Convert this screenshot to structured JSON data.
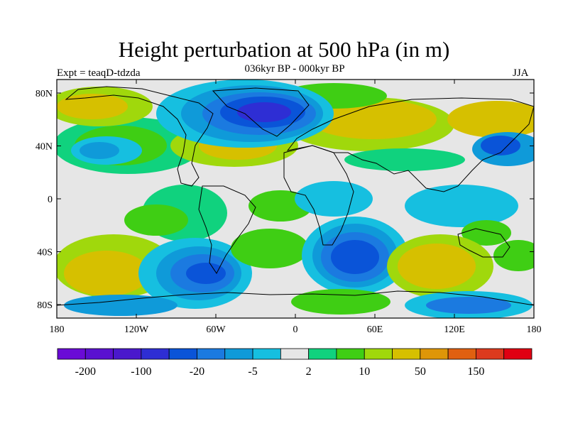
{
  "header": {
    "title": "Height perturbation at 500 hPa (in m)",
    "subtitle": "036kyr BP - 000kyr BP",
    "left_label": "Expt = teaqD-tdzda",
    "right_label": "JJA"
  },
  "map": {
    "projection": "cylindrical-equidistant",
    "lat_ticks": [
      "80N",
      "40N",
      "0",
      "40S",
      "80S"
    ],
    "lon_ticks": [
      "180",
      "120W",
      "60W",
      "0",
      "60E",
      "120E",
      "180"
    ]
  },
  "colorbar": {
    "colors": [
      "#6a0bd6",
      "#5a10d0",
      "#4a18cc",
      "#2e2ed4",
      "#0a54d8",
      "#1b7ae0",
      "#0f9ad9",
      "#16bfe0",
      "#e6e6e6",
      "#10d27e",
      "#3fce14",
      "#a0d80c",
      "#d6c000",
      "#de9608",
      "#e06010",
      "#dc3a1e",
      "#e00012"
    ],
    "labels": [
      "-200",
      "-100",
      "-20",
      "-5",
      "2",
      "10",
      "50",
      "150"
    ]
  }
}
